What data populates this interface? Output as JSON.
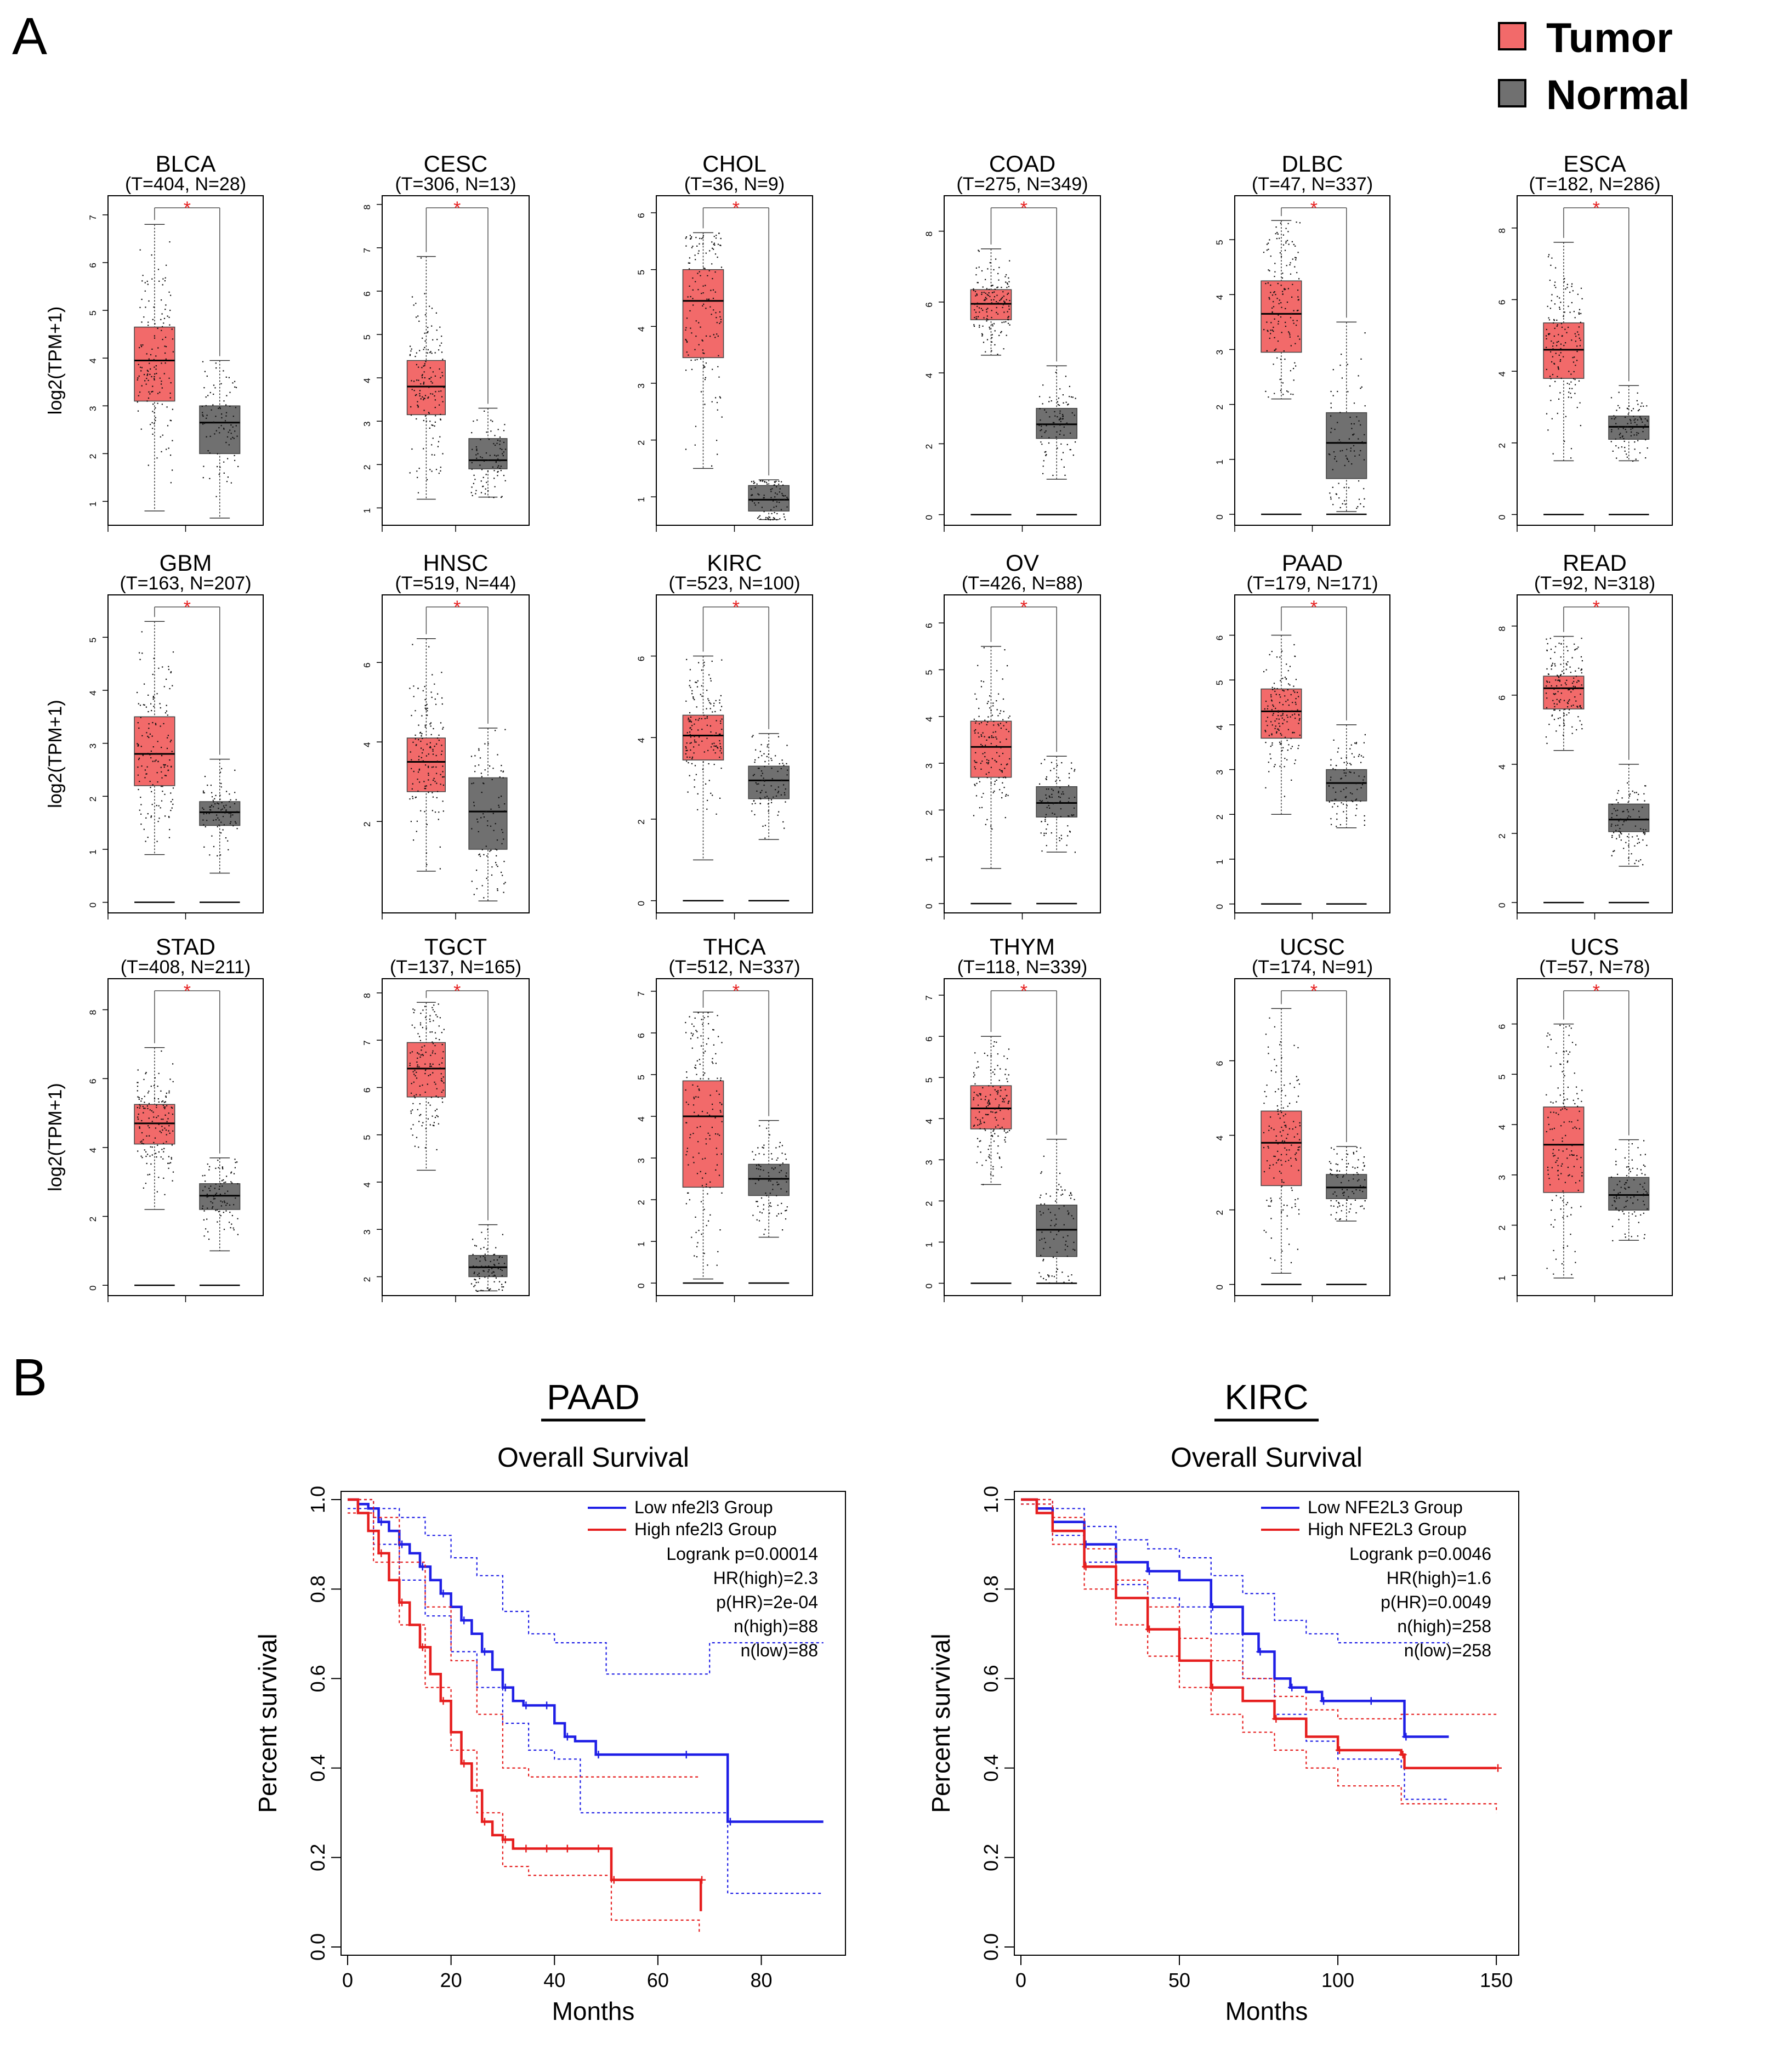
{
  "panel_labels": {
    "a": "A",
    "b": "B"
  },
  "legend": {
    "tumor_label": "Tumor",
    "normal_label": "Normal",
    "tumor_color": "#f26a6a",
    "normal_color": "#707070"
  },
  "colors": {
    "low_group": "#1f1fe6",
    "high_group": "#e61e1e",
    "significance": "#e61e1e"
  },
  "chart_data": [
    {
      "type": "box",
      "cancer": "BLCA",
      "counts": "(T=404, N=28)",
      "sig": "*",
      "ylabel": "log2(TPM+1)",
      "ylim": [
        0.5,
        7.4
      ],
      "yticks": [
        1,
        2,
        3,
        4,
        5,
        6,
        7
      ],
      "tumor": {
        "q1": 3.1,
        "med": 3.95,
        "q3": 4.65,
        "lo": 0.8,
        "hi": 6.8
      },
      "normal": {
        "q1": 2.0,
        "med": 2.65,
        "q3": 3.0,
        "lo": 0.65,
        "hi": 3.95
      },
      "baseline": false
    },
    {
      "type": "box",
      "cancer": "CESC",
      "counts": "(T=306, N=13)",
      "sig": "*",
      "ylabel": "",
      "ylim": [
        0.6,
        8.2
      ],
      "yticks": [
        1,
        2,
        3,
        4,
        5,
        6,
        7,
        8
      ],
      "tumor": {
        "q1": 3.15,
        "med": 3.8,
        "q3": 4.4,
        "lo": 1.2,
        "hi": 6.8
      },
      "normal": {
        "q1": 1.9,
        "med": 2.1,
        "q3": 2.6,
        "lo": 1.25,
        "hi": 3.3
      },
      "baseline": false
    },
    {
      "type": "box",
      "cancer": "CHOL",
      "counts": "(T=36, N=9)",
      "sig": "*",
      "ylabel": "",
      "ylim": [
        0.5,
        6.3
      ],
      "yticks": [
        1,
        2,
        3,
        4,
        5,
        6
      ],
      "tumor": {
        "q1": 3.45,
        "med": 4.45,
        "q3": 5.0,
        "lo": 1.5,
        "hi": 5.65
      },
      "normal": {
        "q1": 0.75,
        "med": 0.95,
        "q3": 1.2,
        "lo": 0.6,
        "hi": 1.3
      },
      "baseline": false
    },
    {
      "type": "box",
      "cancer": "COAD",
      "counts": "(T=275, N=349)",
      "sig": "*",
      "ylabel": "",
      "ylim": [
        -0.3,
        9.0
      ],
      "yticks": [
        0,
        2,
        4,
        6,
        8
      ],
      "tumor": {
        "q1": 5.5,
        "med": 5.95,
        "q3": 6.35,
        "lo": 4.5,
        "hi": 7.5
      },
      "normal": {
        "q1": 2.15,
        "med": 2.55,
        "q3": 3.0,
        "lo": 1.0,
        "hi": 4.2
      },
      "baseline": true
    },
    {
      "type": "box",
      "cancer": "DLBC",
      "counts": "(T=47, N=337)",
      "sig": "*",
      "ylabel": "",
      "ylim": [
        -0.2,
        5.8
      ],
      "yticks": [
        0,
        1,
        2,
        3,
        4,
        5
      ],
      "tumor": {
        "q1": 2.95,
        "med": 3.65,
        "q3": 4.25,
        "lo": 2.1,
        "hi": 5.35
      },
      "normal": {
        "q1": 0.65,
        "med": 1.3,
        "q3": 1.85,
        "lo": 0.05,
        "hi": 3.5
      },
      "baseline": true
    },
    {
      "type": "box",
      "cancer": "ESCA",
      "counts": "(T=182, N=286)",
      "sig": "*",
      "ylabel": "",
      "ylim": [
        -0.3,
        8.9
      ],
      "yticks": [
        0,
        2,
        4,
        6,
        8
      ],
      "tumor": {
        "q1": 3.8,
        "med": 4.6,
        "q3": 5.35,
        "lo": 1.5,
        "hi": 7.6
      },
      "normal": {
        "q1": 2.1,
        "med": 2.45,
        "q3": 2.75,
        "lo": 1.5,
        "hi": 3.6
      },
      "baseline": true
    },
    {
      "type": "box",
      "cancer": "GBM",
      "counts": "(T=163, N=207)",
      "sig": "*",
      "ylabel": "log2(TPM+1)",
      "ylim": [
        -0.2,
        5.8
      ],
      "yticks": [
        0,
        1,
        2,
        3,
        4,
        5
      ],
      "tumor": {
        "q1": 2.2,
        "med": 2.8,
        "q3": 3.5,
        "lo": 0.9,
        "hi": 5.3
      },
      "normal": {
        "q1": 1.45,
        "med": 1.7,
        "q3": 1.9,
        "lo": 0.55,
        "hi": 2.7
      },
      "baseline": true
    },
    {
      "type": "box",
      "cancer": "HNSC",
      "counts": "(T=519, N=44)",
      "sig": "*",
      "ylabel": "",
      "ylim": [
        -0.3,
        7.7
      ],
      "yticks": [
        2,
        4,
        6
      ],
      "tumor": {
        "q1": 2.75,
        "med": 3.5,
        "q3": 4.1,
        "lo": 0.75,
        "hi": 6.6
      },
      "normal": {
        "q1": 1.3,
        "med": 2.25,
        "q3": 3.1,
        "lo": 0.0,
        "hi": 4.35
      },
      "baseline": false
    },
    {
      "type": "box",
      "cancer": "KIRC",
      "counts": "(T=523, N=100)",
      "sig": "*",
      "ylabel": "",
      "ylim": [
        -0.3,
        7.5
      ],
      "yticks": [
        0,
        2,
        4,
        6
      ],
      "tumor": {
        "q1": 3.45,
        "med": 4.05,
        "q3": 4.55,
        "lo": 1.0,
        "hi": 6.0
      },
      "normal": {
        "q1": 2.5,
        "med": 2.95,
        "q3": 3.3,
        "lo": 1.5,
        "hi": 4.1
      },
      "baseline": true
    },
    {
      "type": "box",
      "cancer": "OV",
      "counts": "(T=426, N=88)",
      "sig": "*",
      "ylabel": "",
      "ylim": [
        -0.2,
        6.6
      ],
      "yticks": [
        0,
        1,
        2,
        3,
        4,
        5,
        6
      ],
      "tumor": {
        "q1": 2.7,
        "med": 3.35,
        "q3": 3.9,
        "lo": 0.75,
        "hi": 5.5
      },
      "normal": {
        "q1": 1.85,
        "med": 2.15,
        "q3": 2.5,
        "lo": 1.1,
        "hi": 3.15
      },
      "baseline": true
    },
    {
      "type": "box",
      "cancer": "PAAD",
      "counts": "(T=179, N=171)",
      "sig": "*",
      "ylabel": "",
      "ylim": [
        -0.2,
        6.9
      ],
      "yticks": [
        0,
        1,
        2,
        3,
        4,
        5,
        6
      ],
      "tumor": {
        "q1": 3.7,
        "med": 4.3,
        "q3": 4.8,
        "lo": 2.0,
        "hi": 6.0
      },
      "normal": {
        "q1": 2.3,
        "med": 2.7,
        "q3": 3.0,
        "lo": 1.7,
        "hi": 4.0
      },
      "baseline": true
    },
    {
      "type": "box",
      "cancer": "READ",
      "counts": "(T=92, N=318)",
      "sig": "*",
      "ylabel": "",
      "ylim": [
        -0.3,
        8.9
      ],
      "yticks": [
        0,
        2,
        4,
        6,
        8
      ],
      "tumor": {
        "q1": 5.6,
        "med": 6.2,
        "q3": 6.55,
        "lo": 4.4,
        "hi": 7.7
      },
      "normal": {
        "q1": 2.05,
        "med": 2.4,
        "q3": 2.85,
        "lo": 1.05,
        "hi": 4.0
      },
      "baseline": true
    },
    {
      "type": "box",
      "cancer": "STAD",
      "counts": "(T=408, N=211)",
      "sig": "*",
      "ylabel": "log2(TPM+1)",
      "ylim": [
        -0.3,
        8.9
      ],
      "yticks": [
        0,
        2,
        4,
        6,
        8
      ],
      "tumor": {
        "q1": 4.1,
        "med": 4.7,
        "q3": 5.25,
        "lo": 2.2,
        "hi": 6.9
      },
      "normal": {
        "q1": 2.2,
        "med": 2.6,
        "q3": 2.95,
        "lo": 1.0,
        "hi": 3.7
      },
      "baseline": true
    },
    {
      "type": "box",
      "cancer": "TGCT",
      "counts": "(T=137, N=165)",
      "sig": "*",
      "ylabel": "",
      "ylim": [
        1.6,
        8.3
      ],
      "yticks": [
        2,
        3,
        4,
        5,
        6,
        7,
        8
      ],
      "tumor": {
        "q1": 5.8,
        "med": 6.4,
        "q3": 6.95,
        "lo": 4.25,
        "hi": 7.8
      },
      "normal": {
        "q1": 2.0,
        "med": 2.2,
        "q3": 2.45,
        "lo": 1.7,
        "hi": 3.1
      },
      "baseline": false
    },
    {
      "type": "box",
      "cancer": "THCA",
      "counts": "(T=512, N=337)",
      "sig": "*",
      "ylabel": "",
      "ylim": [
        -0.3,
        7.3
      ],
      "yticks": [
        0,
        1,
        2,
        3,
        4,
        5,
        6,
        7
      ],
      "tumor": {
        "q1": 2.3,
        "med": 4.0,
        "q3": 4.85,
        "lo": 0.1,
        "hi": 6.5
      },
      "normal": {
        "q1": 2.1,
        "med": 2.5,
        "q3": 2.85,
        "lo": 1.1,
        "hi": 3.9
      },
      "baseline": true
    },
    {
      "type": "box",
      "cancer": "THYM",
      "counts": "(T=118, N=339)",
      "sig": "*",
      "ylabel": "",
      "ylim": [
        -0.3,
        7.4
      ],
      "yticks": [
        0,
        1,
        2,
        3,
        4,
        5,
        6,
        7
      ],
      "tumor": {
        "q1": 3.75,
        "med": 4.25,
        "q3": 4.8,
        "lo": 2.4,
        "hi": 6.0
      },
      "normal": {
        "q1": 0.65,
        "med": 1.3,
        "q3": 1.9,
        "lo": 0.0,
        "hi": 3.5
      },
      "baseline": true
    },
    {
      "type": "box",
      "cancer": "UCSC",
      "counts": "(T=174, N=91)",
      "sig": "*",
      "ylabel": "",
      "ylim": [
        -0.3,
        8.2
      ],
      "yticks": [
        0,
        2,
        4,
        6
      ],
      "tumor": {
        "q1": 2.65,
        "med": 3.8,
        "q3": 4.65,
        "lo": 0.3,
        "hi": 7.4
      },
      "normal": {
        "q1": 2.3,
        "med": 2.6,
        "q3": 2.95,
        "lo": 1.7,
        "hi": 3.7
      },
      "baseline": true
    },
    {
      "type": "box",
      "cancer": "UCS",
      "counts": "(T=57, N=78)",
      "sig": "*",
      "ylabel": "",
      "ylim": [
        0.6,
        6.9
      ],
      "yticks": [
        1,
        2,
        3,
        4,
        5,
        6
      ],
      "tumor": {
        "q1": 2.65,
        "med": 3.6,
        "q3": 4.35,
        "lo": 0.95,
        "hi": 6.0
      },
      "normal": {
        "q1": 2.3,
        "med": 2.6,
        "q3": 2.95,
        "lo": 1.7,
        "hi": 3.7
      },
      "baseline": false
    },
    {
      "type": "line",
      "heading": "PAAD",
      "title": "Overall Survival",
      "xlabel": "Months",
      "ylabel": "Percent survival",
      "xlim": [
        0,
        95
      ],
      "ylim": [
        0,
        1
      ],
      "xticks": [
        0,
        20,
        40,
        60,
        80
      ],
      "yticks": [
        0.0,
        0.2,
        0.4,
        0.6,
        0.8,
        1.0
      ],
      "legend": [
        "Low nfe2l3 Group",
        "High nfe2l3 Group"
      ],
      "stats": [
        "Logrank p=0.00014",
        "HR(high)=2.3",
        "p(HR)=2e-04",
        "n(high)=88",
        "n(low)=88"
      ],
      "series": [
        {
          "name": "Low nfe2l3 Group",
          "color": "#1f1fe6",
          "x": [
            0,
            2,
            4,
            6,
            8,
            10,
            12,
            14,
            16,
            18,
            20,
            22,
            24,
            26,
            28,
            30,
            32,
            34,
            36,
            38,
            40,
            42,
            44,
            48,
            55,
            65,
            73,
            73.5,
            92
          ],
          "y": [
            1.0,
            0.99,
            0.98,
            0.95,
            0.93,
            0.9,
            0.88,
            0.85,
            0.82,
            0.79,
            0.76,
            0.73,
            0.7,
            0.66,
            0.62,
            0.58,
            0.55,
            0.54,
            0.54,
            0.54,
            0.5,
            0.47,
            0.46,
            0.43,
            0.43,
            0.43,
            0.43,
            0.28,
            0.28
          ],
          "upper_x": [
            0,
            5,
            10,
            15,
            20,
            25,
            30,
            35,
            40,
            45,
            50,
            60,
            68,
            70,
            73,
            92
          ],
          "upper_y": [
            1.0,
            0.98,
            0.96,
            0.92,
            0.87,
            0.83,
            0.75,
            0.7,
            0.68,
            0.68,
            0.61,
            0.61,
            0.61,
            0.68,
            0.68,
            0.68
          ],
          "lower_x": [
            0,
            5,
            10,
            15,
            20,
            25,
            30,
            35,
            40,
            45,
            55,
            65,
            73,
            73.5,
            92
          ],
          "lower_y": [
            0.98,
            0.9,
            0.82,
            0.74,
            0.66,
            0.58,
            0.5,
            0.44,
            0.42,
            0.3,
            0.3,
            0.3,
            0.3,
            0.12,
            0.12
          ]
        },
        {
          "name": "High nfe2l3 Group",
          "color": "#e61e1e",
          "x": [
            0,
            2,
            4,
            6,
            8,
            10,
            12,
            14,
            16,
            18,
            20,
            22,
            24,
            26,
            28,
            30,
            32,
            34,
            36,
            38,
            40,
            42,
            44,
            48,
            50,
            51,
            60,
            68,
            68.3
          ],
          "y": [
            1.0,
            0.97,
            0.93,
            0.88,
            0.82,
            0.77,
            0.72,
            0.67,
            0.61,
            0.55,
            0.48,
            0.41,
            0.35,
            0.28,
            0.25,
            0.24,
            0.22,
            0.22,
            0.22,
            0.22,
            0.22,
            0.22,
            0.22,
            0.22,
            0.22,
            0.15,
            0.15,
            0.15,
            0.08
          ],
          "upper_x": [
            0,
            5,
            10,
            15,
            20,
            25,
            30,
            35,
            40,
            50,
            60,
            68
          ],
          "upper_y": [
            1.0,
            0.96,
            0.86,
            0.76,
            0.64,
            0.52,
            0.4,
            0.38,
            0.38,
            0.38,
            0.38,
            0.38
          ],
          "lower_x": [
            0,
            5,
            10,
            15,
            20,
            25,
            30,
            35,
            40,
            45,
            50,
            51,
            60,
            68
          ],
          "lower_y": [
            0.97,
            0.86,
            0.72,
            0.58,
            0.44,
            0.3,
            0.18,
            0.16,
            0.16,
            0.16,
            0.16,
            0.06,
            0.06,
            0.03
          ]
        }
      ]
    },
    {
      "type": "line",
      "heading": "KIRC",
      "title": "Overall Survival",
      "xlabel": "Months",
      "ylabel": "Percent survival",
      "xlim": [
        0,
        155
      ],
      "ylim": [
        0,
        1
      ],
      "xticks": [
        0,
        50,
        100,
        150
      ],
      "yticks": [
        0.0,
        0.2,
        0.4,
        0.6,
        0.8,
        1.0
      ],
      "legend": [
        "Low NFE2L3 Group",
        "High NFE2L3 Group"
      ],
      "stats": [
        "Logrank p=0.0046",
        "HR(high)=1.6",
        "p(HR)=0.0049",
        "n(high)=258",
        "n(low)=258"
      ],
      "series": [
        {
          "name": "Low NFE2L3 Group",
          "color": "#1f1fe6",
          "x": [
            0,
            5,
            10,
            20,
            30,
            40,
            50,
            60,
            70,
            75,
            80,
            85,
            90,
            95,
            100,
            110,
            120,
            121,
            135
          ],
          "y": [
            1.0,
            0.98,
            0.95,
            0.9,
            0.86,
            0.84,
            0.82,
            0.76,
            0.7,
            0.66,
            0.6,
            0.58,
            0.57,
            0.55,
            0.55,
            0.55,
            0.55,
            0.47,
            0.47
          ],
          "upper_x": [
            0,
            10,
            20,
            30,
            40,
            50,
            60,
            70,
            80,
            90,
            100,
            110,
            120,
            135
          ],
          "upper_y": [
            1.0,
            0.98,
            0.94,
            0.91,
            0.89,
            0.87,
            0.83,
            0.79,
            0.73,
            0.7,
            0.68,
            0.68,
            0.68,
            0.68
          ],
          "lower_x": [
            0,
            10,
            20,
            30,
            40,
            50,
            60,
            70,
            80,
            90,
            100,
            110,
            120,
            121,
            135
          ],
          "lower_y": [
            0.99,
            0.92,
            0.86,
            0.81,
            0.78,
            0.76,
            0.7,
            0.6,
            0.52,
            0.46,
            0.42,
            0.42,
            0.4,
            0.33,
            0.33
          ]
        },
        {
          "name": "High NFE2L3 Group",
          "color": "#e61e1e",
          "x": [
            0,
            5,
            10,
            20,
            30,
            40,
            50,
            60,
            70,
            80,
            90,
            100,
            110,
            120,
            121,
            150
          ],
          "y": [
            1.0,
            0.97,
            0.93,
            0.85,
            0.78,
            0.71,
            0.64,
            0.58,
            0.55,
            0.51,
            0.47,
            0.44,
            0.44,
            0.43,
            0.4,
            0.4
          ],
          "upper_x": [
            0,
            10,
            20,
            30,
            40,
            50,
            60,
            70,
            80,
            90,
            100,
            120,
            150
          ],
          "upper_y": [
            1.0,
            0.96,
            0.89,
            0.82,
            0.76,
            0.69,
            0.64,
            0.6,
            0.56,
            0.53,
            0.51,
            0.52,
            0.52
          ],
          "lower_x": [
            0,
            10,
            20,
            30,
            40,
            50,
            60,
            70,
            80,
            90,
            100,
            120,
            150
          ],
          "lower_y": [
            0.99,
            0.9,
            0.8,
            0.72,
            0.65,
            0.58,
            0.52,
            0.48,
            0.44,
            0.4,
            0.36,
            0.32,
            0.3
          ]
        }
      ]
    }
  ]
}
